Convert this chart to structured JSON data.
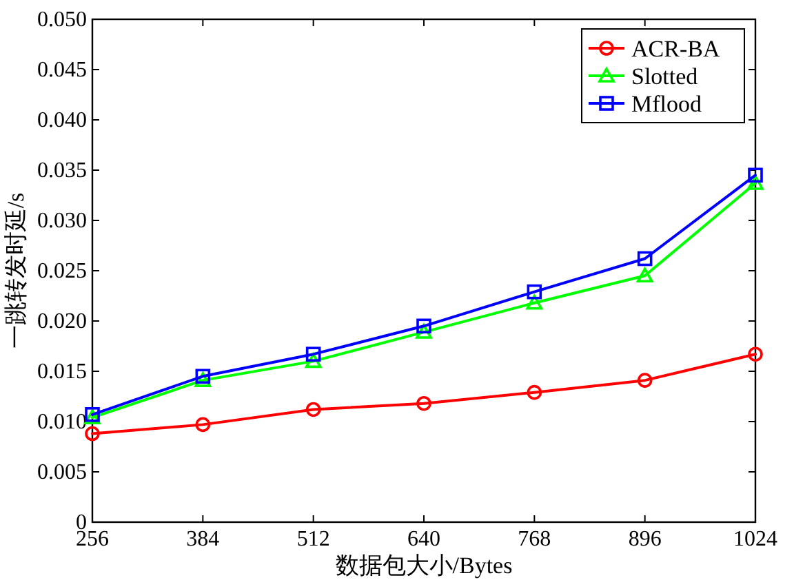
{
  "chart_data": {
    "type": "line",
    "xlabel": "数据包大小/Bytes",
    "ylabel": "一跳转发时延/s",
    "x": [
      256,
      384,
      512,
      640,
      768,
      896,
      1024
    ],
    "series": [
      {
        "name": "ACR-BA",
        "color": "#ff0000",
        "marker": "circle",
        "values": [
          0.0088,
          0.0097,
          0.0112,
          0.0118,
          0.0129,
          0.0141,
          0.0167
        ]
      },
      {
        "name": "Slotted",
        "color": "#00ff00",
        "marker": "triangle",
        "values": [
          0.0104,
          0.0141,
          0.016,
          0.0189,
          0.0218,
          0.0245,
          0.0337
        ]
      },
      {
        "name": "Mflood",
        "color": "#0000ff",
        "marker": "square",
        "values": [
          0.0107,
          0.0145,
          0.0167,
          0.0195,
          0.0229,
          0.0262,
          0.0345
        ]
      }
    ],
    "xlim": [
      256,
      1024
    ],
    "xticks": [
      256,
      384,
      512,
      640,
      768,
      896,
      1024
    ],
    "ylim": [
      0,
      0.05
    ],
    "yticks": [
      {
        "value": 0,
        "label": "0"
      },
      {
        "value": 0.005,
        "label": "0.005"
      },
      {
        "value": 0.01,
        "label": "0.010"
      },
      {
        "value": 0.015,
        "label": "0.015"
      },
      {
        "value": 0.02,
        "label": "0.020"
      },
      {
        "value": 0.025,
        "label": "0.025"
      },
      {
        "value": 0.03,
        "label": "0.030"
      },
      {
        "value": 0.035,
        "label": "0.035"
      },
      {
        "value": 0.04,
        "label": "0.040"
      },
      {
        "value": 0.045,
        "label": "0.045"
      },
      {
        "value": 0.05,
        "label": "0.050"
      }
    ],
    "grid": false,
    "legend": "top right",
    "line_style": "solid"
  }
}
